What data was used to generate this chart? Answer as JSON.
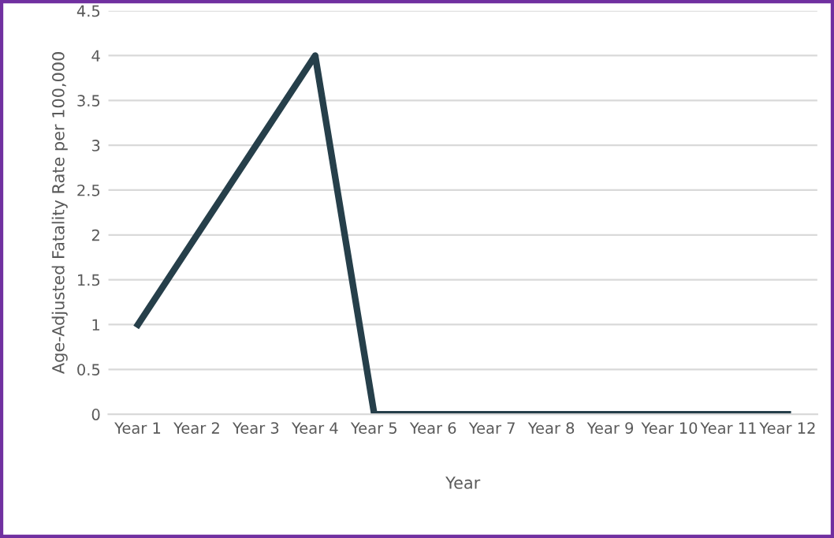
{
  "chart_data": {
    "type": "line",
    "xlabel": "Year",
    "ylabel": "Age-Adjusted Fatality Rate per 100,000",
    "categories": [
      "Year 1",
      "Year 2",
      "Year 3",
      "Year 4",
      "Year 5",
      "Year 6",
      "Year 7",
      "Year 8",
      "Year 9",
      "Year 10",
      "Year 11",
      "Year 12"
    ],
    "series": [
      {
        "color": "#263f4a",
        "values": [
          1,
          2,
          3,
          4,
          0,
          0,
          0,
          0,
          0,
          0,
          0,
          0
        ]
      }
    ],
    "ylim": [
      0,
      4.5
    ],
    "yticks": [
      0,
      0.5,
      1,
      1.5,
      2,
      2.5,
      3,
      3.5,
      4,
      4.5
    ],
    "grid": "y",
    "legend": false,
    "marker": "none",
    "line_style": "solid"
  }
}
